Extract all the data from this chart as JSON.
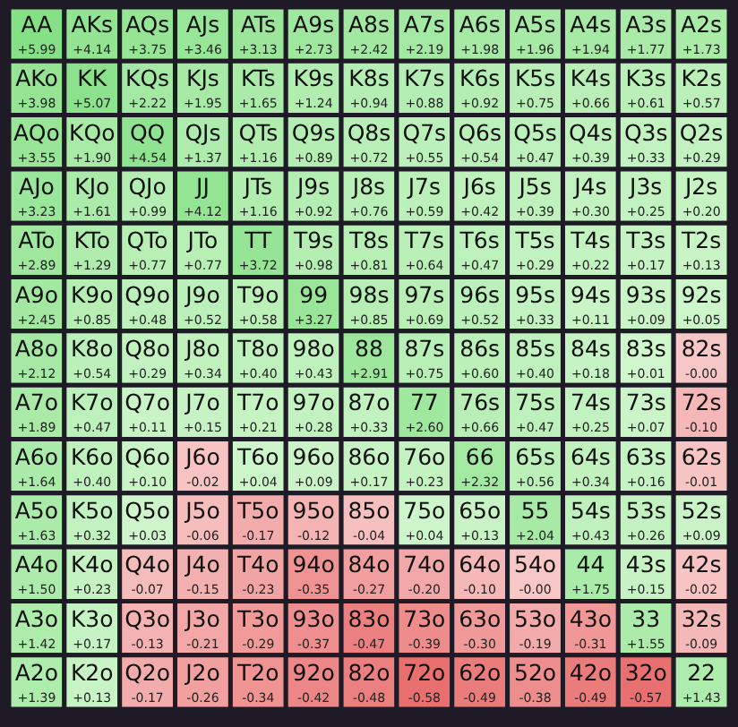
{
  "chart_data": {
    "type": "heatmap",
    "tick_labels": false,
    "categories": [
      null,
      null,
      null,
      null,
      null,
      null,
      null,
      null,
      null,
      null,
      null,
      null,
      null
    ],
    "y_categories": [
      null,
      null,
      null,
      null,
      null,
      null,
      null,
      null,
      null,
      null,
      null,
      null,
      null
    ],
    "cells": [
      [
        5.99,
        4.14,
        3.75,
        3.46,
        3.13,
        2.73,
        2.42,
        2.19,
        1.98,
        1.96,
        1.94,
        1.77,
        1.73
      ],
      [
        3.98,
        5.07,
        2.22,
        1.95,
        1.65,
        1.24,
        0.94,
        0.88,
        0.92,
        0.75,
        0.66,
        0.61,
        0.57
      ],
      [
        3.55,
        1.9,
        4.54,
        1.37,
        1.16,
        0.89,
        0.72,
        0.55,
        0.54,
        0.47,
        0.39,
        0.33,
        0.29
      ],
      [
        3.23,
        1.61,
        0.99,
        4.12,
        1.16,
        0.92,
        0.76,
        0.59,
        0.42,
        0.39,
        0.3,
        0.25,
        0.2
      ],
      [
        2.89,
        1.29,
        0.77,
        0.77,
        3.72,
        0.98,
        0.81,
        0.64,
        0.47,
        0.29,
        0.22,
        0.17,
        0.13
      ],
      [
        2.45,
        0.85,
        0.48,
        0.52,
        0.58,
        3.27,
        0.85,
        0.69,
        0.52,
        0.33,
        0.11,
        0.09,
        0.05
      ],
      [
        2.12,
        0.54,
        0.29,
        0.34,
        0.4,
        0.43,
        2.91,
        0.75,
        0.6,
        0.4,
        0.18,
        0.01,
        -0.0
      ],
      [
        1.89,
        0.47,
        0.11,
        0.15,
        0.21,
        0.28,
        0.33,
        2.6,
        0.66,
        0.47,
        0.25,
        0.07,
        -0.1
      ],
      [
        1.64,
        0.4,
        0.1,
        -0.02,
        0.04,
        0.09,
        0.17,
        0.23,
        2.32,
        0.56,
        0.34,
        0.16,
        -0.01
      ],
      [
        1.63,
        0.32,
        0.03,
        -0.06,
        -0.17,
        -0.12,
        -0.04,
        0.04,
        0.13,
        2.04,
        0.43,
        0.26,
        0.09
      ],
      [
        1.5,
        0.23,
        -0.07,
        -0.15,
        -0.23,
        -0.35,
        -0.27,
        -0.2,
        -0.1,
        -0.0,
        1.75,
        0.15,
        -0.02
      ],
      [
        1.42,
        0.17,
        -0.13,
        -0.21,
        -0.29,
        -0.37,
        -0.47,
        -0.39,
        -0.3,
        -0.19,
        -0.31,
        1.55,
        -0.09
      ],
      [
        1.39,
        0.13,
        -0.17,
        -0.26,
        -0.34,
        -0.42,
        -0.48,
        -0.58,
        -0.49,
        -0.38,
        -0.49,
        -0.57,
        1.43
      ]
    ],
    "cell_labels": [
      [
        "+5.99",
        "+4.14",
        "+3.75",
        "+3.46",
        "+3.13",
        "+2.73",
        "+2.42",
        "+2.19",
        "+1.98",
        "+1.96",
        "+1.94",
        "+1.77",
        "+1.73"
      ],
      [
        "+3.98",
        "+5.07",
        "+2.22",
        "+1.95",
        "+1.65",
        "+1.24",
        "+0.94",
        "+0.88",
        "+0.92",
        "+0.75",
        "+0.66",
        "+0.61",
        "+0.57"
      ],
      [
        "+3.55",
        "+1.90",
        "+4.54",
        "+1.37",
        "+1.16",
        "+0.89",
        "+0.72",
        "+0.55",
        "+0.54",
        "+0.47",
        "+0.39",
        "+0.33",
        "+0.29"
      ],
      [
        "+3.23",
        "+1.61",
        "+0.99",
        "+4.12",
        "+1.16",
        "+0.92",
        "+0.76",
        "+0.59",
        "+0.42",
        "+0.39",
        "+0.30",
        "+0.25",
        "+0.20"
      ],
      [
        "+2.89",
        "+1.29",
        "+0.77",
        "+0.77",
        "+3.72",
        "+0.98",
        "+0.81",
        "+0.64",
        "+0.47",
        "+0.29",
        "+0.22",
        "+0.17",
        "+0.13"
      ],
      [
        "+2.45",
        "+0.85",
        "+0.48",
        "+0.52",
        "+0.58",
        "+3.27",
        "+0.85",
        "+0.69",
        "+0.52",
        "+0.33",
        "+0.11",
        "+0.09",
        "+0.05"
      ],
      [
        "+2.12",
        "+0.54",
        "+0.29",
        "+0.34",
        "+0.40",
        "+0.43",
        "+2.91",
        "+0.75",
        "+0.60",
        "+0.40",
        "+0.18",
        "+0.01",
        "-0.00"
      ],
      [
        "+1.89",
        "+0.47",
        "+0.11",
        "+0.15",
        "+0.21",
        "+0.28",
        "+0.33",
        "+2.60",
        "+0.66",
        "+0.47",
        "+0.25",
        "+0.07",
        "-0.10"
      ],
      [
        "+1.64",
        "+0.40",
        "+0.10",
        "-0.02",
        "+0.04",
        "+0.09",
        "+0.17",
        "+0.23",
        "+2.32",
        "+0.56",
        "+0.34",
        "+0.16",
        "-0.01"
      ],
      [
        "+1.63",
        "+0.32",
        "+0.03",
        "-0.06",
        "-0.17",
        "-0.12",
        "-0.04",
        "+0.04",
        "+0.13",
        "+2.04",
        "+0.43",
        "+0.26",
        "+0.09"
      ],
      [
        "+1.50",
        "+0.23",
        "-0.07",
        "-0.15",
        "-0.23",
        "-0.35",
        "-0.27",
        "-0.20",
        "-0.10",
        "-0.00",
        "+1.75",
        "+0.15",
        "-0.02"
      ],
      [
        "+1.42",
        "+0.17",
        "-0.13",
        "-0.21",
        "-0.29",
        "-0.37",
        "-0.47",
        "-0.39",
        "-0.30",
        "-0.19",
        "-0.31",
        "+1.55",
        "-0.09"
      ],
      [
        "+1.39",
        "+0.13",
        "-0.17",
        "-0.26",
        "-0.34",
        "-0.42",
        "-0.48",
        "-0.58",
        "-0.49",
        "-0.38",
        "-0.49",
        "-0.57",
        "+1.43"
      ]
    ],
    "annotations": [
      "AA",
      "AKs",
      "AQs",
      "AJs",
      "ATs",
      "A9s",
      "A8s",
      "A7s",
      "A6s",
      "A5s",
      "A4s",
      "A3s",
      "A2s",
      "AKo",
      "KK",
      "KQs",
      "KJs",
      "KTs",
      "K9s",
      "K8s",
      "K7s",
      "K6s",
      "K5s",
      "K4s",
      "K3s",
      "K2s",
      "AQo",
      "KQo",
      "QQ",
      "QJs",
      "QTs",
      "Q9s",
      "Q8s",
      "Q7s",
      "Q6s",
      "Q5s",
      "Q4s",
      "Q3s",
      "Q2s",
      "AJo",
      "KJo",
      "QJo",
      "JJ",
      "JTs",
      "J9s",
      "J8s",
      "J7s",
      "J6s",
      "J5s",
      "J4s",
      "J3s",
      "J2s",
      "ATo",
      "KTo",
      "QTo",
      "JTo",
      "TT",
      "T9s",
      "T8s",
      "T7s",
      "T6s",
      "T5s",
      "T4s",
      "T3s",
      "T2s",
      "A9o",
      "K9o",
      "Q9o",
      "J9o",
      "T9o",
      "99",
      "98s",
      "97s",
      "96s",
      "95s",
      "94s",
      "93s",
      "92s",
      "A8o",
      "K8o",
      "Q8o",
      "J8o",
      "T8o",
      "98o",
      "88",
      "87s",
      "86s",
      "85s",
      "84s",
      "83s",
      "82s",
      "A7o",
      "K7o",
      "Q7o",
      "J7o",
      "T7o",
      "97o",
      "87o",
      "77",
      "76s",
      "75s",
      "74s",
      "73s",
      "72s",
      "A6o",
      "K6o",
      "Q6o",
      "J6o",
      "T6o",
      "96o",
      "86o",
      "76o",
      "66",
      "65s",
      "64s",
      "63s",
      "62s",
      "A5o",
      "K5o",
      "Q5o",
      "J5o",
      "T5o",
      "95o",
      "85o",
      "75o",
      "65o",
      "55",
      "54s",
      "53s",
      "52s",
      "A4o",
      "K4o",
      "Q4o",
      "J4o",
      "T4o",
      "94o",
      "84o",
      "74o",
      "64o",
      "54o",
      "44",
      "43s",
      "42s",
      "A3o",
      "K3o",
      "Q3o",
      "J3o",
      "T3o",
      "93o",
      "83o",
      "73o",
      "63o",
      "53o",
      "43o",
      "33",
      "32s",
      "A2o",
      "K2o",
      "Q2o",
      "J2o",
      "T2o",
      "92o",
      "82o",
      "72o",
      "62o",
      "52o",
      "42o",
      "32o",
      "22"
    ]
  }
}
